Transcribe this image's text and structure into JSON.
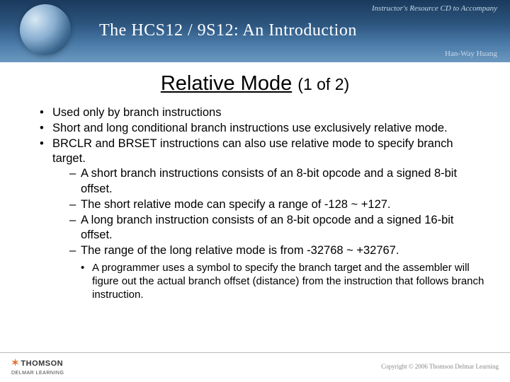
{
  "header": {
    "top_text": "Instructor's Resource CD to Accompany",
    "title": "The HCS12 / 9S12: An Introduction",
    "author": "Han-Way Huang",
    "bg_gradient_colors": [
      "#1a3a5c",
      "#2d5680",
      "#4a7aa8",
      "#6a98c0"
    ]
  },
  "slide": {
    "title_main": "Relative Mode",
    "title_sub": "(1 of 2)",
    "title_fontsize": 29,
    "body_fontsize": 16.5,
    "bullets": [
      {
        "text": "Used only by branch instructions"
      },
      {
        "text": "Short and long conditional branch instructions use exclusively relative mode."
      },
      {
        "text": "BRCLR and BRSET instructions can also use relative mode to specify branch target.",
        "dash": [
          "A short branch instructions consists of an 8-bit opcode and a signed 8-bit offset.",
          "The short relative mode can specify a range of -128 ~ +127.",
          "A long branch instruction consists of an 8-bit opcode and a signed 16-bit offset.",
          "The range of the long relative mode is from -32768 ~ +32767."
        ],
        "sub_bullet": [
          "A programmer uses a symbol to specify the branch target and the assembler will figure out the actual branch offset (distance) from the instruction that follows branch instruction."
        ]
      }
    ]
  },
  "footer": {
    "publisher_top": "THOMSON",
    "publisher_bottom": "DELMAR LEARNING",
    "copyright": "Copyright © 2006 Thomson Delmar Learning"
  },
  "colors": {
    "text": "#000000",
    "footer_text": "#888888",
    "header_text": "#ffffff",
    "header_subtext": "#c8d8e8"
  }
}
